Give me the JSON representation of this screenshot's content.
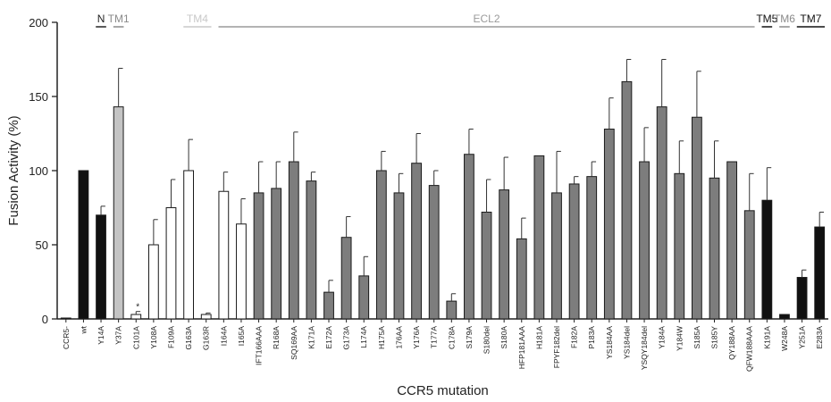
{
  "chart_data": {
    "type": "bar",
    "title": "",
    "xlabel": "CCR5 mutation",
    "ylabel": "Fusion Activity (%)",
    "ylim": [
      0,
      200
    ],
    "yticks": [
      0,
      50,
      100,
      150,
      200
    ],
    "grid": false,
    "legend": "none",
    "categories": [
      "CCR5-",
      "wt",
      "Y14A",
      "Y37A",
      "C101A",
      "Y108A",
      "F109A",
      "G163A",
      "G163R",
      "I164A",
      "I165A",
      "IFT166AAA",
      "R168A",
      "SQ169AA",
      "K171A",
      "E172A",
      "G173A",
      "L174A",
      "H175A",
      "176AA",
      "Y176A",
      "T177A",
      "C178A",
      "S179A",
      "S180del",
      "S180A",
      "HFP181AAA",
      "H181A",
      "FPYF182del",
      "F182A",
      "P183A",
      "YS184AA",
      "YS184del",
      "YSQY184del",
      "Y184A",
      "Y184W",
      "S185A",
      "S185Y",
      "QY188AA",
      "QFW188AAA",
      "K191A",
      "W248A",
      "Y251A",
      "E283A"
    ],
    "values": [
      0,
      100,
      70,
      143,
      3,
      50,
      75,
      100,
      3,
      86,
      64,
      85,
      88,
      106,
      93,
      18,
      55,
      29,
      100,
      85,
      105,
      90,
      12,
      111,
      72,
      87,
      54,
      110,
      85,
      91,
      96,
      128,
      160,
      106,
      143,
      98,
      136,
      95,
      106,
      73,
      80,
      3,
      28,
      62
    ],
    "errors": [
      0,
      0,
      6,
      26,
      2,
      17,
      19,
      21,
      1,
      13,
      17,
      21,
      18,
      20,
      6,
      8,
      14,
      13,
      13,
      13,
      20,
      10,
      5,
      17,
      22,
      22,
      14,
      0,
      28,
      5,
      10,
      21,
      15,
      23,
      32,
      22,
      31,
      25,
      0,
      25,
      22,
      0,
      5,
      10
    ],
    "bar_colors": [
      "#111111",
      "#111111",
      "#111111",
      "#c4c4c4",
      "#ffffff",
      "#ffffff",
      "#ffffff",
      "#ffffff",
      "#ffffff",
      "#ffffff",
      "#ffffff",
      "#7d7d7d",
      "#7d7d7d",
      "#7d7d7d",
      "#7d7d7d",
      "#7d7d7d",
      "#7d7d7d",
      "#7d7d7d",
      "#7d7d7d",
      "#7d7d7d",
      "#7d7d7d",
      "#7d7d7d",
      "#7d7d7d",
      "#7d7d7d",
      "#7d7d7d",
      "#7d7d7d",
      "#7d7d7d",
      "#7d7d7d",
      "#7d7d7d",
      "#7d7d7d",
      "#7d7d7d",
      "#7d7d7d",
      "#7d7d7d",
      "#7d7d7d",
      "#7d7d7d",
      "#7d7d7d",
      "#7d7d7d",
      "#7d7d7d",
      "#7d7d7d",
      "#7d7d7d",
      "#111111",
      "#111111",
      "#111111",
      "#111111"
    ],
    "annotations": [
      {
        "text": "*",
        "category": "C101A"
      }
    ],
    "regions": [
      {
        "label": "N",
        "from": "Y14A",
        "to": "Y14A",
        "color": "#222222"
      },
      {
        "label": "TM1",
        "from": "Y37A",
        "to": "Y37A",
        "color": "#8a8a8a"
      },
      {
        "label": "TM4",
        "from": "G163A",
        "to": "G163R",
        "color": "#c8c8c8"
      },
      {
        "label": "ECL2",
        "from": "I164A",
        "to": "QFW188AAA",
        "color": "#9a9a9a"
      },
      {
        "label": "TM5",
        "from": "K191A",
        "to": "K191A",
        "color": "#111111"
      },
      {
        "label": "TM6",
        "from": "W248A",
        "to": "W248A",
        "color": "#8a8a8a"
      },
      {
        "label": "TM7",
        "from": "Y251A",
        "to": "E283A",
        "color": "#111111"
      }
    ]
  }
}
